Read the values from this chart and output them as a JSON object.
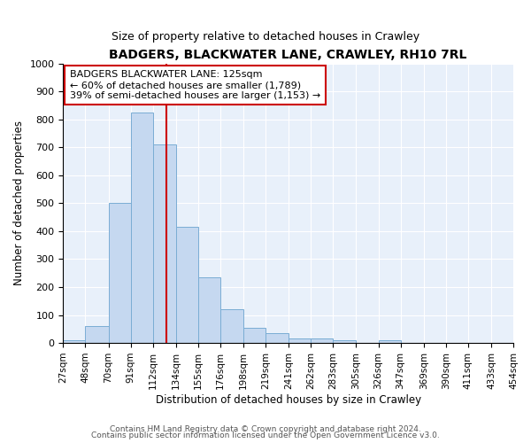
{
  "title": "BADGERS, BLACKWATER LANE, CRAWLEY, RH10 7RL",
  "subtitle": "Size of property relative to detached houses in Crawley",
  "xlabel": "Distribution of detached houses by size in Crawley",
  "ylabel": "Number of detached properties",
  "bin_labels": [
    "27sqm",
    "48sqm",
    "70sqm",
    "91sqm",
    "112sqm",
    "134sqm",
    "155sqm",
    "176sqm",
    "198sqm",
    "219sqm",
    "241sqm",
    "262sqm",
    "283sqm",
    "305sqm",
    "326sqm",
    "347sqm",
    "369sqm",
    "390sqm",
    "411sqm",
    "433sqm",
    "454sqm"
  ],
  "bin_edges": [
    27,
    48,
    70,
    91,
    112,
    134,
    155,
    176,
    198,
    219,
    241,
    262,
    283,
    305,
    326,
    347,
    369,
    390,
    411,
    433,
    454
  ],
  "bar_heights": [
    10,
    60,
    500,
    825,
    710,
    415,
    235,
    120,
    55,
    35,
    15,
    15,
    10,
    0,
    10,
    0,
    0,
    0,
    0,
    0
  ],
  "bar_color": "#c5d8f0",
  "bar_edge_color": "#7aadd4",
  "vline_x": 125,
  "vline_color": "#cc0000",
  "annotation_text": "BADGERS BLACKWATER LANE: 125sqm\n← 60% of detached houses are smaller (1,789)\n39% of semi-detached houses are larger (1,153) →",
  "annotation_box_color": "#ffffff",
  "annotation_box_edge": "#cc0000",
  "ylim": [
    0,
    1000
  ],
  "yticks": [
    0,
    100,
    200,
    300,
    400,
    500,
    600,
    700,
    800,
    900,
    1000
  ],
  "plot_bg_color": "#e8f0fa",
  "fig_bg_color": "#ffffff",
  "grid_color": "#ffffff",
  "footer1": "Contains HM Land Registry data © Crown copyright and database right 2024.",
  "footer2": "Contains public sector information licensed under the Open Government Licence v3.0."
}
